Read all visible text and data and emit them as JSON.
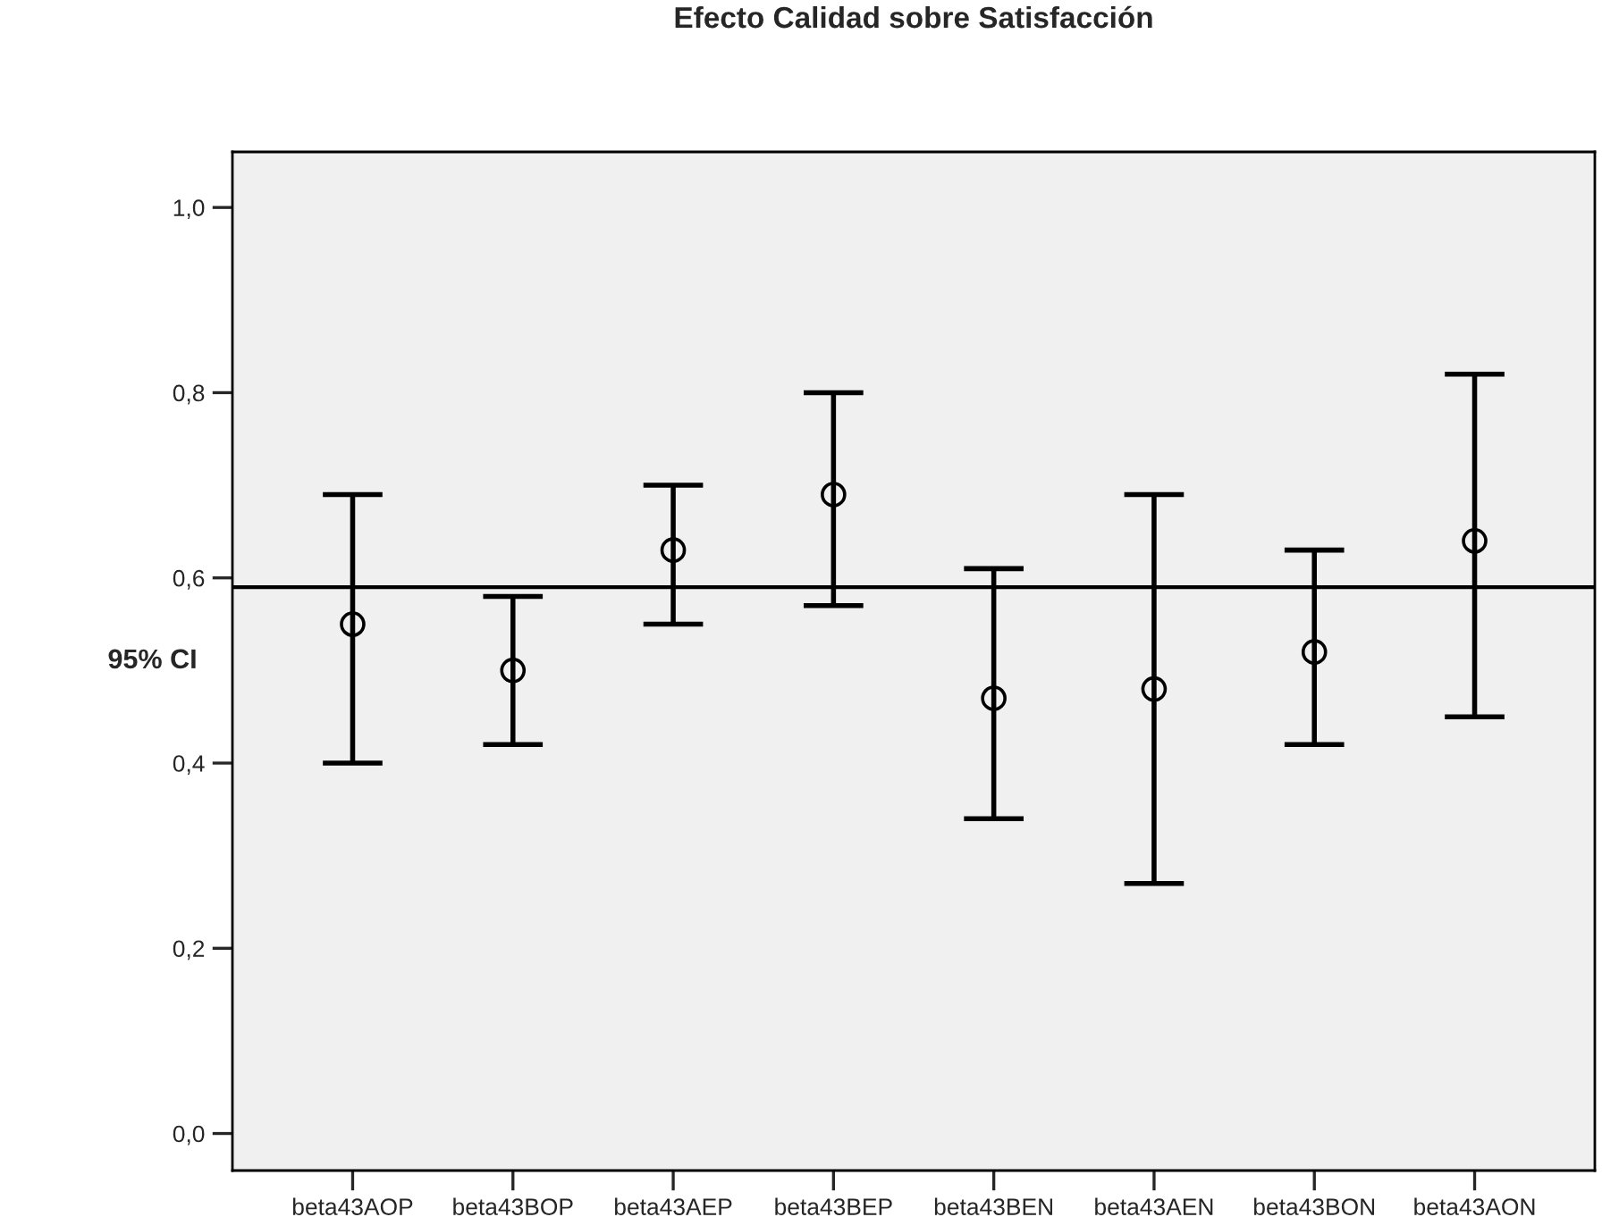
{
  "chart_data": {
    "type": "scatter",
    "title": "Efecto Calidad sobre Satisfacción",
    "ylabel": "95% CI",
    "categories": [
      "beta43AOP",
      "beta43BOP",
      "beta43AEP",
      "beta43BEP",
      "beta43BEN",
      "beta43AEN",
      "beta43BON",
      "beta43AON"
    ],
    "values": [
      0.55,
      0.5,
      0.63,
      0.69,
      0.47,
      0.48,
      0.52,
      0.64
    ],
    "errors": [
      [
        0.4,
        0.69
      ],
      [
        0.42,
        0.58
      ],
      [
        0.55,
        0.7
      ],
      [
        0.57,
        0.8
      ],
      [
        0.34,
        0.61
      ],
      [
        0.27,
        0.69
      ],
      [
        0.42,
        0.63
      ],
      [
        0.45,
        0.82
      ]
    ],
    "color": "#000000",
    "marker": "circle",
    "ylim": [
      -0.04,
      1.06
    ],
    "yticks": [
      {
        "value": 0.0,
        "label": "0,0"
      },
      {
        "value": 0.2,
        "label": "0,2"
      },
      {
        "value": 0.4,
        "label": "0,4"
      },
      {
        "value": 0.6,
        "label": "0,6"
      },
      {
        "value": 0.8,
        "label": "0,8"
      },
      {
        "value": 1.0,
        "label": "1,0"
      }
    ],
    "ref_lines": [
      {
        "axis": "y",
        "value": 0.59,
        "color": "#000000"
      }
    ],
    "grid": false,
    "legend": false
  }
}
